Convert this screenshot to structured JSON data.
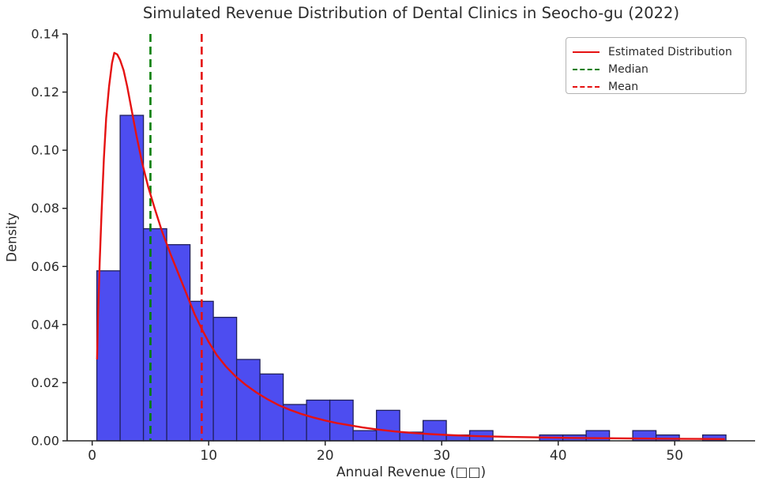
{
  "chart_data": {
    "type": "bar",
    "subtype": "histogram-with-kde",
    "title": "Simulated Revenue Distribution of Dental Clinics in Seocho-gu (2022)",
    "xlabel": "Annual Revenue (□□)",
    "ylabel": "Density",
    "x_ticks": [
      0,
      10,
      20,
      30,
      40,
      50
    ],
    "y_ticks": [
      "0.00",
      "0.02",
      "0.04",
      "0.06",
      "0.08",
      "0.10",
      "0.12",
      "0.14"
    ],
    "xlim": [
      -2.15,
      56.9
    ],
    "ylim": [
      0,
      0.14
    ],
    "grid": false,
    "legend_position": "upper right",
    "bins": {
      "start": 0.4,
      "width": 2,
      "densities": [
        0.0585,
        0.112,
        0.073,
        0.0675,
        0.048,
        0.0425,
        0.028,
        0.023,
        0.0125,
        0.014,
        0.014,
        0.0035,
        0.0105,
        0.003,
        0.007,
        0.002,
        0.0035,
        0,
        0,
        0.002,
        0.002,
        0.0035,
        0,
        0.0035,
        0.002,
        0,
        0.002
      ]
    },
    "kde_curve": [
      [
        0.42,
        0.028
      ],
      [
        0.5,
        0.043
      ],
      [
        0.65,
        0.062
      ],
      [
        0.8,
        0.078
      ],
      [
        1.0,
        0.097
      ],
      [
        1.2,
        0.111
      ],
      [
        1.45,
        0.122
      ],
      [
        1.7,
        0.13
      ],
      [
        1.9,
        0.1335
      ],
      [
        2.15,
        0.133
      ],
      [
        2.4,
        0.131
      ],
      [
        2.7,
        0.1275
      ],
      [
        3.0,
        0.122
      ],
      [
        3.4,
        0.1135
      ],
      [
        3.8,
        0.105
      ],
      [
        4.3,
        0.0955
      ],
      [
        4.8,
        0.0875
      ],
      [
        5.4,
        0.0795
      ],
      [
        6.0,
        0.072
      ],
      [
        6.7,
        0.0645
      ],
      [
        7.4,
        0.0575
      ],
      [
        8.1,
        0.0505
      ],
      [
        8.8,
        0.0435
      ],
      [
        9.4,
        0.0385
      ],
      [
        10,
        0.034
      ],
      [
        10.7,
        0.0295
      ],
      [
        11.5,
        0.0255
      ],
      [
        12.3,
        0.0222
      ],
      [
        13.2,
        0.0192
      ],
      [
        14.1,
        0.0166
      ],
      [
        15,
        0.0144
      ],
      [
        16,
        0.0123
      ],
      [
        17,
        0.0106
      ],
      [
        18,
        0.0092
      ],
      [
        19,
        0.008
      ],
      [
        20,
        0.007
      ],
      [
        21,
        0.0061
      ],
      [
        22,
        0.0054
      ],
      [
        23.2,
        0.0046
      ],
      [
        24.5,
        0.0039
      ],
      [
        26,
        0.0032
      ],
      [
        27.5,
        0.0027
      ],
      [
        29,
        0.0023
      ],
      [
        31,
        0.0019
      ],
      [
        33,
        0.0016
      ],
      [
        35.5,
        0.0014
      ],
      [
        38,
        0.0012
      ],
      [
        41,
        0.001
      ],
      [
        44,
        0.0009
      ],
      [
        47,
        0.0008
      ],
      [
        50,
        0.0007
      ],
      [
        52,
        0.00065
      ],
      [
        54.3,
        0.0006
      ]
    ],
    "median": 5.0,
    "mean": 9.4,
    "colors": {
      "bar_fill": "#4d4df0",
      "bar_edge": "#20205a",
      "kde_line": "#e51212",
      "median_line": "#007d00",
      "mean_line": "#e51212",
      "axis": "#262626",
      "text": "#2b2b2b"
    }
  },
  "legend": {
    "items": [
      {
        "label": "Estimated Distribution",
        "style": "solid-red"
      },
      {
        "label": "Median",
        "style": "dashed-green"
      },
      {
        "label": "Mean",
        "style": "dashed-red"
      }
    ]
  }
}
